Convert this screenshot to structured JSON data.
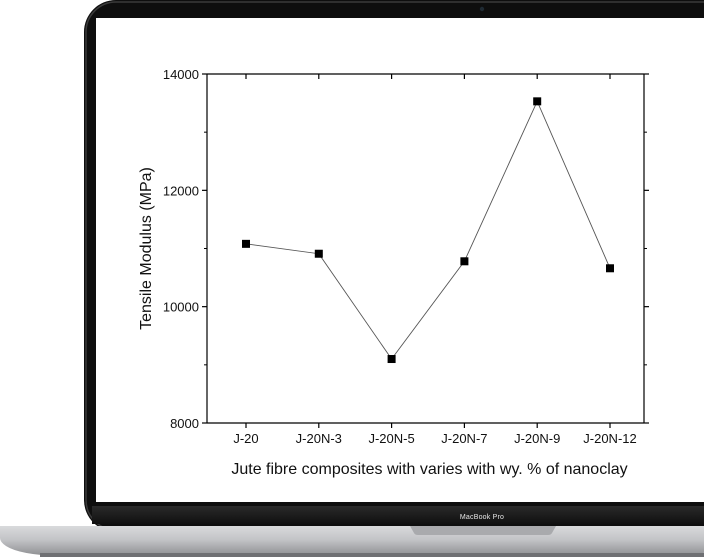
{
  "device": {
    "brand_label": "MacBook Pro"
  },
  "chart_data": {
    "type": "line",
    "categories": [
      "J-20",
      "J-20N-3",
      "J-20N-5",
      "J-20N-7",
      "J-20N-9",
      "J-20N-12"
    ],
    "series": [
      {
        "values": [
          11080,
          10910,
          9100,
          10780,
          13530,
          10660
        ]
      }
    ],
    "xlabel": "Jute fibre composites with varies with wy. % of nanoclay",
    "ylabel": "Tensile Modulus (MPa)",
    "ylim": [
      8000,
      14000
    ],
    "yticks": [
      8000,
      10000,
      12000,
      14000
    ],
    "ytick_labels": [
      "8000",
      "10000",
      "12000",
      "14000"
    ],
    "marker": "square",
    "grid": false,
    "colors": {
      "line": "#555555",
      "marker": "#000000",
      "axis": "#000000"
    }
  }
}
